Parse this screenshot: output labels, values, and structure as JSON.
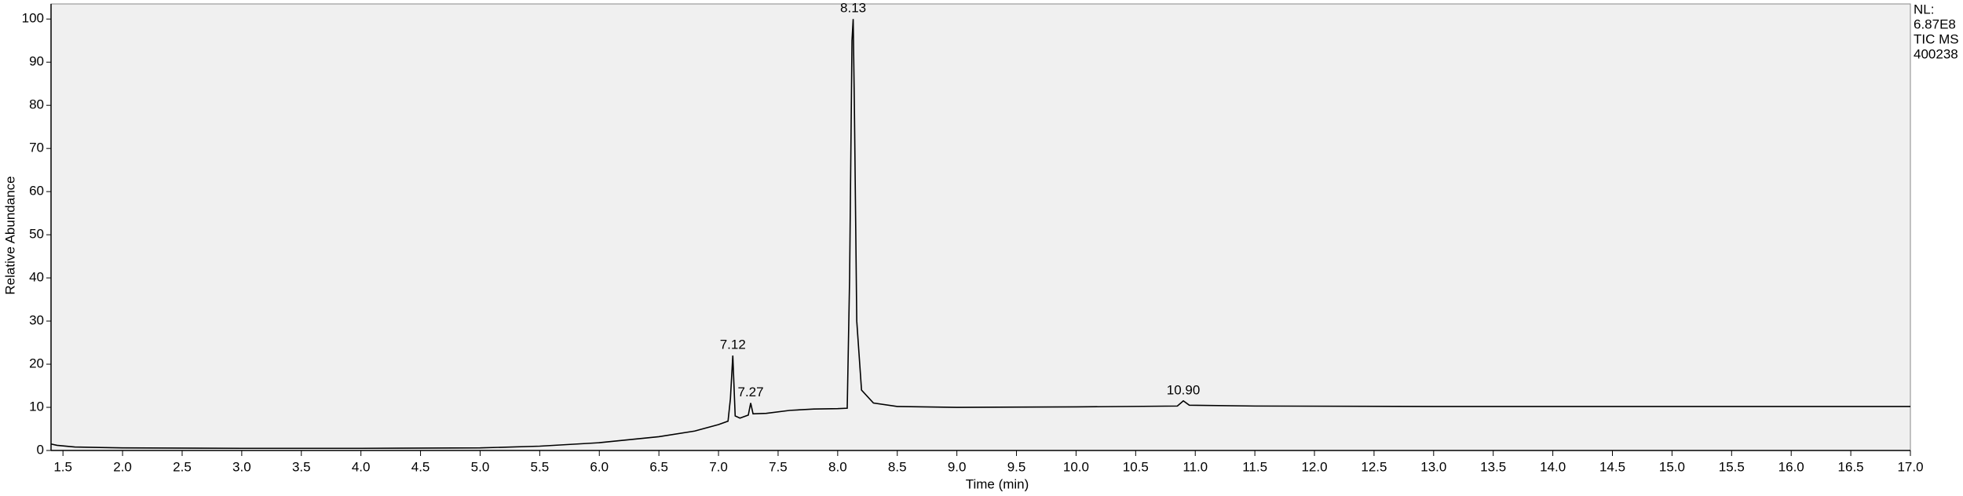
{
  "chart_data": {
    "type": "line",
    "xlabel": "Time (min)",
    "ylabel": "Relative Abundance",
    "info": [
      "NL:",
      "6.87E8",
      "TIC MS",
      "400238"
    ],
    "x": [
      1.4,
      1.45,
      1.6,
      2.0,
      3.0,
      4.0,
      5.0,
      5.5,
      6.0,
      6.5,
      6.8,
      7.0,
      7.08,
      7.1,
      7.12,
      7.14,
      7.18,
      7.25,
      7.27,
      7.29,
      7.4,
      7.6,
      7.8,
      8.0,
      8.08,
      8.1,
      8.12,
      8.13,
      8.14,
      8.16,
      8.2,
      8.3,
      8.5,
      9.0,
      10.0,
      10.85,
      10.9,
      10.95,
      11.5,
      13.0,
      15.0,
      17.0
    ],
    "series": [
      {
        "name": "TIC",
        "color": "#000000",
        "values": [
          1.5,
          1.2,
          0.8,
          0.6,
          0.5,
          0.5,
          0.6,
          1.0,
          1.8,
          3.2,
          4.5,
          6.0,
          6.8,
          12,
          22,
          8,
          7.5,
          8.2,
          11,
          8.5,
          8.6,
          9.3,
          9.6,
          9.7,
          9.8,
          40,
          95,
          100,
          80,
          30,
          14,
          11,
          10.2,
          10.0,
          10.1,
          10.3,
          11.5,
          10.5,
          10.3,
          10.2,
          10.2,
          10.2
        ]
      }
    ],
    "peaks": [
      {
        "x": 7.12,
        "y": 22,
        "label": "7.12"
      },
      {
        "x": 7.27,
        "y": 11,
        "label": "7.27"
      },
      {
        "x": 8.13,
        "y": 100,
        "label": "8.13"
      },
      {
        "x": 10.9,
        "y": 11.5,
        "label": "10.90"
      }
    ],
    "xlim": [
      1.4,
      17.0
    ],
    "ylim": [
      0,
      103.5
    ],
    "xticks": [
      1.5,
      {
        "value": 2,
        "label": "2.0"
      },
      2.5,
      {
        "value": 3,
        "label": "3.0"
      },
      3.5,
      {
        "value": 4,
        "label": "4.0"
      },
      4.5,
      {
        "value": 5,
        "label": "5.0"
      },
      5.5,
      {
        "value": 6,
        "label": "6.0"
      },
      6.5,
      {
        "value": 7,
        "label": "7.0"
      },
      7.5,
      {
        "value": 8,
        "label": "8.0"
      },
      8.5,
      {
        "value": 9,
        "label": "9.0"
      },
      9.5,
      {
        "value": 10,
        "label": "10.0"
      },
      10.5,
      {
        "value": 11,
        "label": "11.0"
      },
      11.5,
      {
        "value": 12,
        "label": "12.0"
      },
      12.5,
      {
        "value": 13,
        "label": "13.0"
      },
      13.5,
      {
        "value": 14,
        "label": "14.0"
      },
      14.5,
      {
        "value": 15,
        "label": "15.0"
      },
      15.5,
      {
        "value": 16,
        "label": "16.0"
      },
      16.5,
      {
        "value": 17,
        "label": "17.0"
      }
    ],
    "yticks": [
      0,
      10,
      20,
      30,
      40,
      50,
      60,
      70,
      80,
      90,
      100
    ],
    "grid": false
  }
}
